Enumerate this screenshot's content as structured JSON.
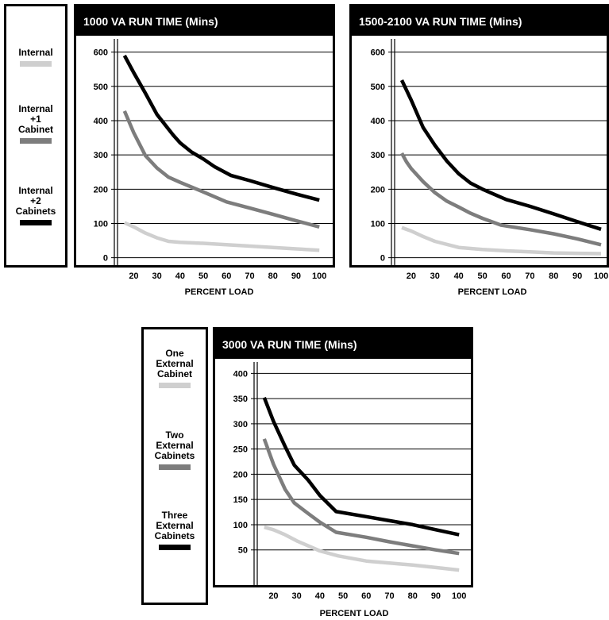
{
  "colors": {
    "light": "#cfcfcf",
    "mid": "#7d7d7d",
    "dark": "#000000",
    "header_bg": "#000000",
    "header_text": "#ffffff"
  },
  "legends": [
    {
      "entries": [
        {
          "label": "Internal",
          "color": "#cfcfcf"
        },
        {
          "label": "Internal\n+1\nCabinet",
          "color": "#7d7d7d"
        },
        {
          "label": "Internal\n+2\nCabinets",
          "color": "#000000"
        }
      ]
    },
    {
      "entries": [
        {
          "label": "One\nExternal\nCabinet",
          "color": "#cfcfcf"
        },
        {
          "label": "Two\nExternal\nCabinets",
          "color": "#7d7d7d"
        },
        {
          "label": "Three\nExternal\nCabinets",
          "color": "#000000"
        }
      ]
    }
  ],
  "chart_data": [
    {
      "type": "line",
      "title": "1000 VA RUN TIME (Mins)",
      "xlabel": "PERCENT LOAD",
      "ylabel": "",
      "xlim": [
        13,
        102
      ],
      "ylim": [
        -10,
        620
      ],
      "xticks": [
        20,
        30,
        40,
        50,
        60,
        70,
        80,
        90,
        100
      ],
      "yticks": [
        0,
        100,
        200,
        300,
        400,
        500,
        600
      ],
      "grid": "horizontal",
      "series": [
        {
          "color": "#cfcfcf",
          "x": [
            16,
            20,
            25,
            30,
            35,
            40,
            50,
            60,
            70,
            80,
            90,
            100
          ],
          "y": [
            102,
            90,
            72,
            58,
            48,
            45,
            42,
            38,
            34,
            30,
            26,
            22
          ]
        },
        {
          "color": "#7d7d7d",
          "x": [
            16,
            20,
            25,
            30,
            35,
            40,
            50,
            60,
            70,
            80,
            90,
            100
          ],
          "y": [
            428,
            365,
            298,
            262,
            235,
            220,
            192,
            163,
            145,
            127,
            108,
            90
          ]
        },
        {
          "color": "#000000",
          "x": [
            16,
            20,
            25,
            30,
            37,
            40,
            45,
            50,
            55,
            62,
            70,
            80,
            90,
            100
          ],
          "y": [
            590,
            540,
            480,
            418,
            358,
            335,
            308,
            288,
            265,
            240,
            225,
            205,
            186,
            168
          ]
        }
      ]
    },
    {
      "type": "line",
      "title": "1500-2100 VA RUN TIME (Mins)",
      "xlabel": "PERCENT LOAD",
      "ylabel": "",
      "xlim": [
        13,
        102
      ],
      "ylim": [
        -10,
        620
      ],
      "xticks": [
        20,
        30,
        40,
        50,
        60,
        70,
        80,
        90,
        100
      ],
      "yticks": [
        0,
        100,
        200,
        300,
        400,
        500,
        600
      ],
      "grid": "horizontal",
      "series": [
        {
          "color": "#cfcfcf",
          "x": [
            16,
            20,
            25,
            30,
            40,
            50,
            60,
            70,
            80,
            90,
            100
          ],
          "y": [
            88,
            78,
            62,
            48,
            30,
            24,
            20,
            17,
            14,
            13,
            12
          ]
        },
        {
          "color": "#7d7d7d",
          "x": [
            16,
            18,
            20,
            25,
            30,
            35,
            40,
            45,
            50,
            58,
            70,
            80,
            90,
            100
          ],
          "y": [
            305,
            280,
            260,
            222,
            190,
            165,
            148,
            130,
            115,
            95,
            82,
            70,
            55,
            38
          ]
        },
        {
          "color": "#000000",
          "x": [
            16,
            20,
            25,
            30,
            35,
            40,
            45,
            50,
            55,
            60,
            70,
            80,
            90,
            100
          ],
          "y": [
            518,
            460,
            380,
            328,
            282,
            245,
            218,
            200,
            185,
            170,
            150,
            128,
            105,
            83
          ]
        }
      ]
    },
    {
      "type": "line",
      "title": "3000 VA RUN TIME (Mins)",
      "xlabel": "PERCENT LOAD",
      "ylabel": "",
      "xlim": [
        13,
        102
      ],
      "ylim": [
        -15,
        410
      ],
      "xticks": [
        20,
        30,
        40,
        50,
        60,
        70,
        80,
        90,
        100
      ],
      "yticks": [
        50,
        100,
        150,
        200,
        250,
        300,
        350,
        400
      ],
      "grid": "horizontal",
      "series": [
        {
          "color": "#cfcfcf",
          "x": [
            16,
            20,
            25,
            30,
            40,
            48,
            60,
            70,
            80,
            90,
            100
          ],
          "y": [
            95,
            90,
            80,
            68,
            48,
            38,
            28,
            24,
            20,
            15,
            10
          ]
        },
        {
          "color": "#7d7d7d",
          "x": [
            16,
            20,
            25,
            29,
            35,
            40,
            47,
            60,
            70,
            80,
            90,
            100
          ],
          "y": [
            270,
            220,
            170,
            143,
            122,
            105,
            85,
            75,
            66,
            58,
            50,
            43
          ]
        },
        {
          "color": "#000000",
          "x": [
            16,
            20,
            25,
            29,
            35,
            40,
            47,
            60,
            70,
            80,
            90,
            100
          ],
          "y": [
            352,
            305,
            255,
            218,
            188,
            158,
            126,
            116,
            108,
            100,
            90,
            80
          ]
        }
      ]
    }
  ]
}
